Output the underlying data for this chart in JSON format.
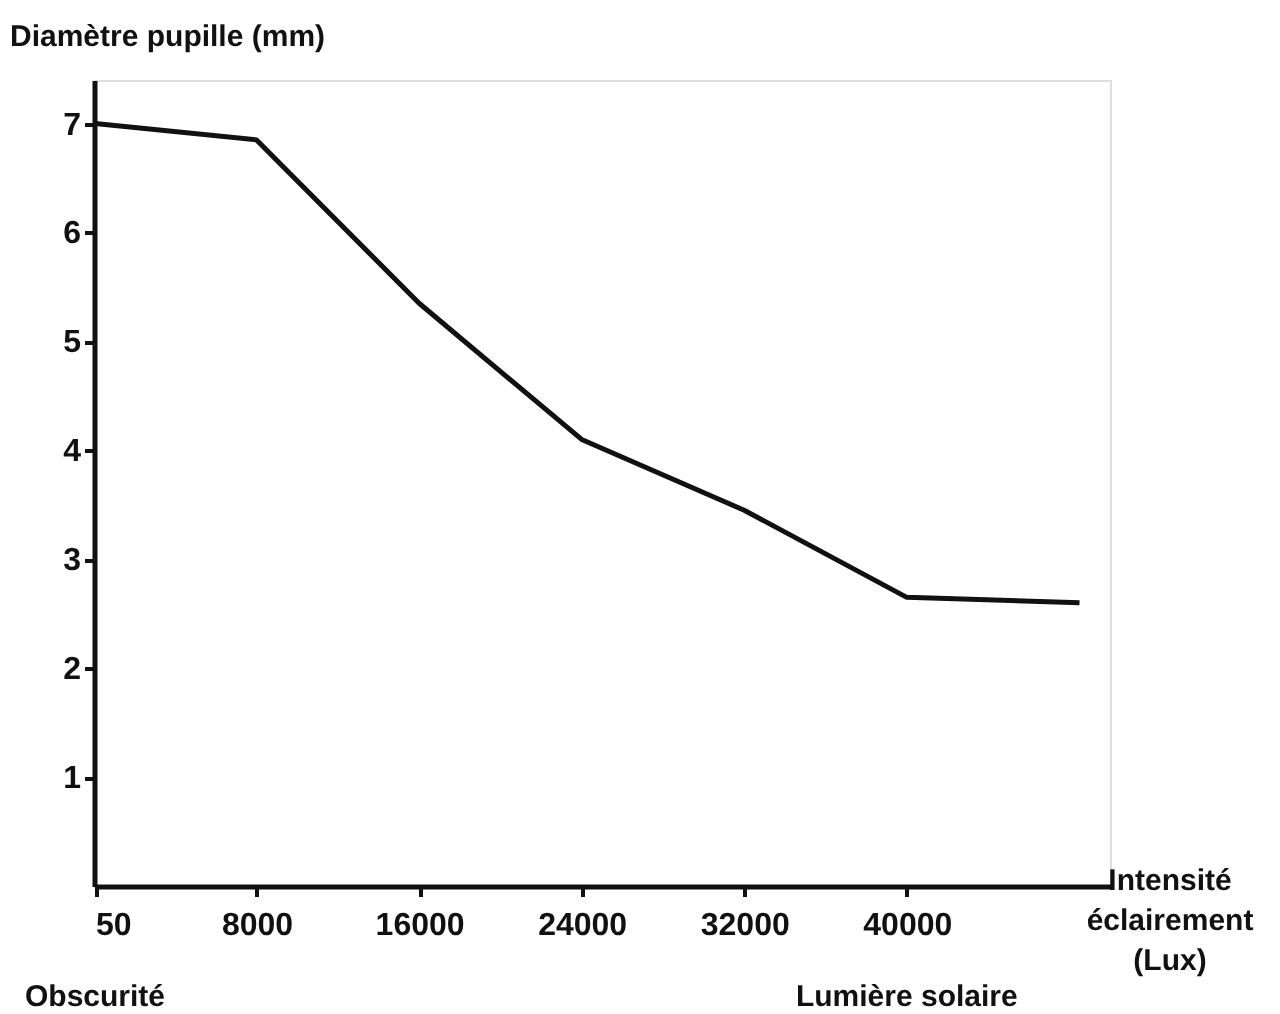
{
  "chart_data": {
    "type": "line",
    "ylabel": "Diamètre pupille (mm)",
    "xlabel": "Intensité éclairement (Lux)",
    "x": [
      50,
      8000,
      16000,
      24000,
      32000,
      40000,
      48500
    ],
    "series": [
      {
        "color": "#111111",
        "values": [
          7.0,
          6.85,
          5.35,
          4.1,
          3.45,
          2.65,
          2.6
        ]
      }
    ],
    "xlim": [
      0,
      50000
    ],
    "ylim": [
      0,
      7.4
    ],
    "xticks": [
      50,
      8000,
      16000,
      24000,
      32000,
      40000
    ],
    "yticks": [
      1,
      2,
      3,
      4,
      5,
      6,
      7
    ],
    "grid": false,
    "marker": "none",
    "line_style": "solid",
    "annotations": [
      "Obscurité",
      "Lumière solaire"
    ]
  }
}
